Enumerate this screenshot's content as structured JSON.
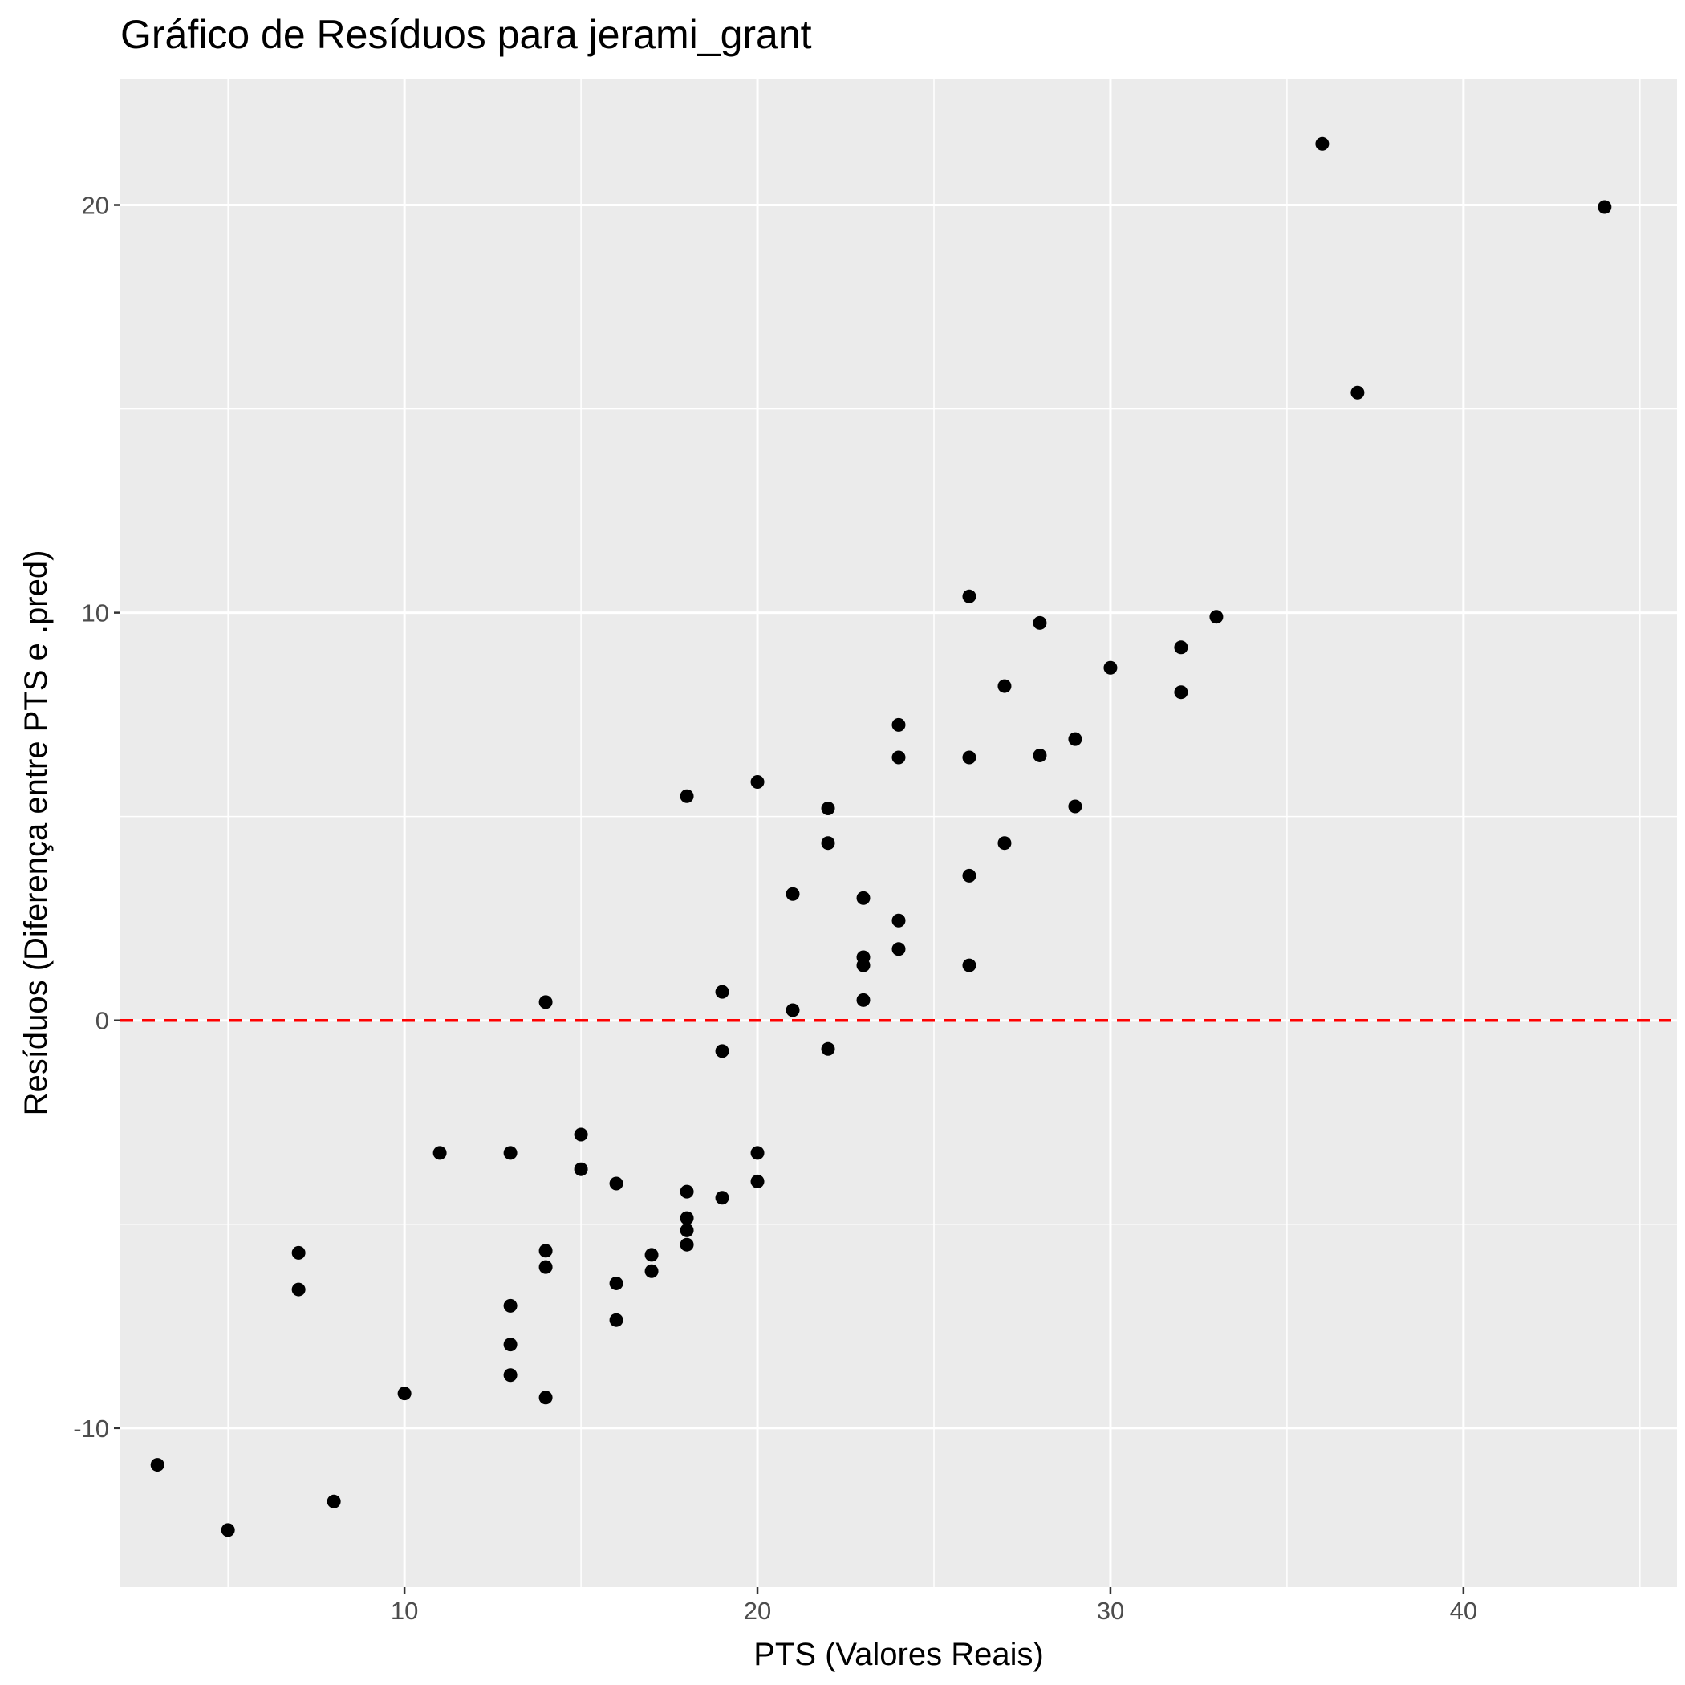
{
  "chart_data": {
    "type": "scatter",
    "title": "Gráfico de Resíduos para jerami_grant",
    "xlabel": "PTS (Valores Reais)",
    "ylabel": "Resíduos (Diferença entre PTS e .pred)",
    "xlim": [
      1.95,
      46.05
    ],
    "ylim": [
      -13.9,
      23.1
    ],
    "x_ticks": [
      10,
      20,
      30,
      40
    ],
    "y_ticks": [
      -10,
      0,
      10,
      20
    ],
    "x_tick_labels": [
      "10",
      "20",
      "30",
      "40"
    ],
    "y_tick_labels": [
      "-10",
      "0",
      "10",
      "20"
    ],
    "grid": true,
    "reference_line": {
      "y": 0,
      "style": "dashed",
      "color": "#ff0000"
    },
    "colors": {
      "panel": "#ebebeb",
      "grid": "#ffffff",
      "points": "#000000"
    },
    "points": [
      {
        "x": 3,
        "y": -10.9
      },
      {
        "x": 5,
        "y": -12.5
      },
      {
        "x": 7,
        "y": -5.7
      },
      {
        "x": 7,
        "y": -6.6
      },
      {
        "x": 8,
        "y": -11.8
      },
      {
        "x": 10,
        "y": -9.15
      },
      {
        "x": 11,
        "y": -3.25
      },
      {
        "x": 13,
        "y": -3.25
      },
      {
        "x": 13,
        "y": -7.0
      },
      {
        "x": 13,
        "y": -7.95
      },
      {
        "x": 13,
        "y": -8.7
      },
      {
        "x": 14,
        "y": 0.45
      },
      {
        "x": 14,
        "y": -5.65
      },
      {
        "x": 14,
        "y": -6.05
      },
      {
        "x": 14,
        "y": -9.25
      },
      {
        "x": 15,
        "y": -2.8
      },
      {
        "x": 15,
        "y": -3.65
      },
      {
        "x": 16,
        "y": -4.0
      },
      {
        "x": 16,
        "y": -6.45
      },
      {
        "x": 16,
        "y": -7.35
      },
      {
        "x": 17,
        "y": -5.75
      },
      {
        "x": 17,
        "y": -6.15
      },
      {
        "x": 18,
        "y": 5.5
      },
      {
        "x": 18,
        "y": -4.2
      },
      {
        "x": 18,
        "y": -4.85
      },
      {
        "x": 18,
        "y": -5.15
      },
      {
        "x": 18,
        "y": -5.5
      },
      {
        "x": 19,
        "y": 0.7
      },
      {
        "x": 19,
        "y": -0.75
      },
      {
        "x": 19,
        "y": -4.35
      },
      {
        "x": 20,
        "y": 5.85
      },
      {
        "x": 20,
        "y": -3.25
      },
      {
        "x": 20,
        "y": -3.95
      },
      {
        "x": 21,
        "y": 3.1
      },
      {
        "x": 21,
        "y": 0.25
      },
      {
        "x": 22,
        "y": 5.2
      },
      {
        "x": 22,
        "y": 4.35
      },
      {
        "x": 22,
        "y": -0.7
      },
      {
        "x": 23,
        "y": 3.0
      },
      {
        "x": 23,
        "y": 1.55
      },
      {
        "x": 23,
        "y": 1.35
      },
      {
        "x": 23,
        "y": 0.5
      },
      {
        "x": 24,
        "y": 7.25
      },
      {
        "x": 24,
        "y": 6.45
      },
      {
        "x": 24,
        "y": 2.45
      },
      {
        "x": 24,
        "y": 1.75
      },
      {
        "x": 26,
        "y": 10.4
      },
      {
        "x": 26,
        "y": 6.45
      },
      {
        "x": 26,
        "y": 3.55
      },
      {
        "x": 26,
        "y": 1.35
      },
      {
        "x": 27,
        "y": 8.2
      },
      {
        "x": 27,
        "y": 4.35
      },
      {
        "x": 28,
        "y": 9.75
      },
      {
        "x": 28,
        "y": 6.5
      },
      {
        "x": 29,
        "y": 6.9
      },
      {
        "x": 29,
        "y": 5.25
      },
      {
        "x": 30,
        "y": 8.65
      },
      {
        "x": 32,
        "y": 9.15
      },
      {
        "x": 32,
        "y": 8.05
      },
      {
        "x": 33,
        "y": 9.9
      },
      {
        "x": 36,
        "y": 21.5
      },
      {
        "x": 37,
        "y": 15.4
      },
      {
        "x": 44,
        "y": 19.95
      }
    ]
  }
}
